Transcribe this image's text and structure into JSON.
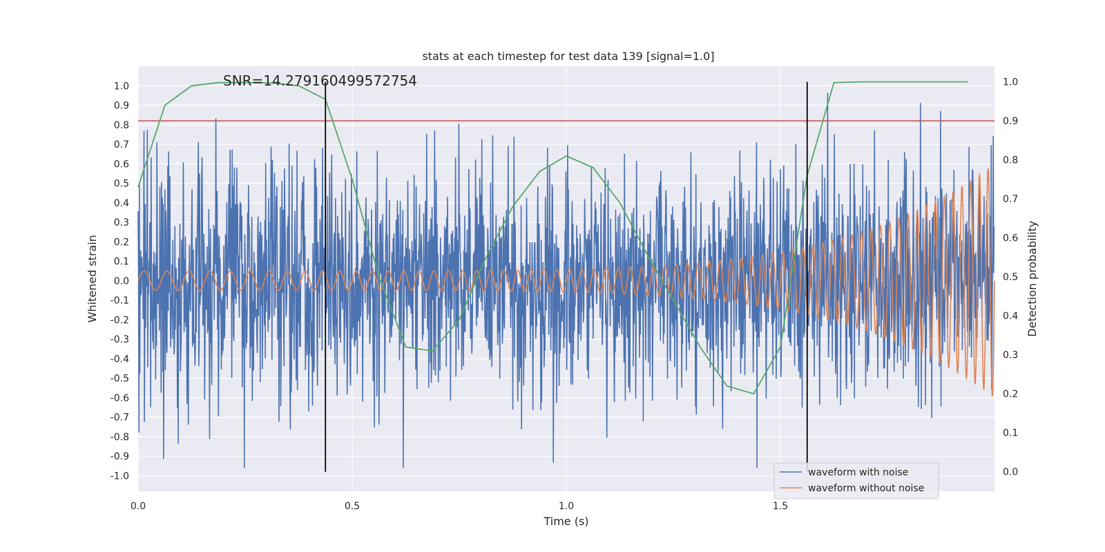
{
  "chart_data": {
    "type": "line",
    "title": "stats at each timestep for test data 139 [signal=1.0]",
    "xlabel": "Time (s)",
    "ylabel": "Whitened strain",
    "ylabel_right": "Detection probability",
    "xlim": [
      0.0,
      2.0
    ],
    "ylim": [
      -1.08,
      1.1
    ],
    "ylim_right": [
      -0.05,
      1.04
    ],
    "x_ticks": [
      "0.0",
      "0.5",
      "1.0",
      "1.5"
    ],
    "y_ticks": [
      "1.0",
      "0.9",
      "0.8",
      "0.7",
      "0.6",
      "0.5",
      "0.4",
      "0.3",
      "0.2",
      "0.1",
      "0.0",
      "-0.1",
      "-0.2",
      "-0.3",
      "-0.4",
      "-0.5",
      "-0.6",
      "-0.7",
      "-0.8",
      "-0.9",
      "-1.0"
    ],
    "y_ticks_right": [
      "1.0",
      "0.9",
      "0.8",
      "0.7",
      "0.6",
      "0.5",
      "0.4",
      "0.3",
      "0.2",
      "0.1",
      "0.0"
    ],
    "grid": true,
    "legend_position": "lower-right",
    "annotation": "SNR=14.279160499572754",
    "threshold": 0.9,
    "vertical_lines": [
      0.4375,
      1.5625
    ],
    "series": [
      {
        "name": "waveform with noise",
        "color": "#4c72b0",
        "axis": "left",
        "kind": "noise",
        "amplitude_range": [
          -0.96,
          1.0
        ],
        "sample_count": 2048
      },
      {
        "name": "waveform without noise",
        "color": "#dd8452",
        "axis": "left",
        "kind": "chirp",
        "amplitude_start": 0.05,
        "amplitude_end": 0.6,
        "frequency_start_hz": 18,
        "frequency_end_hz": 50
      },
      {
        "name": "",
        "color": "#55a868",
        "axis": "right",
        "x": [
          0.0,
          0.0625,
          0.125,
          0.1875,
          0.25,
          0.3125,
          0.375,
          0.4375,
          0.5,
          0.5625,
          0.625,
          0.6875,
          0.75,
          0.8125,
          0.875,
          0.9375,
          1.0,
          1.0625,
          1.125,
          1.1875,
          1.25,
          1.3125,
          1.375,
          1.4375,
          1.5,
          1.5625,
          1.625,
          1.6875,
          1.75,
          1.8125,
          1.875,
          1.9375
        ],
        "y": [
          0.73,
          0.94,
          0.99,
          0.998,
          0.998,
          0.997,
          0.99,
          0.955,
          0.75,
          0.5,
          0.32,
          0.31,
          0.39,
          0.55,
          0.68,
          0.77,
          0.81,
          0.78,
          0.69,
          0.56,
          0.44,
          0.32,
          0.22,
          0.2,
          0.32,
          0.76,
          0.998,
          1.0,
          1.0,
          1.0,
          1.0,
          1.0
        ]
      }
    ],
    "threshold_color": "#c44e52",
    "vline_color": "#000000",
    "background_color": "#eaeaf2"
  }
}
